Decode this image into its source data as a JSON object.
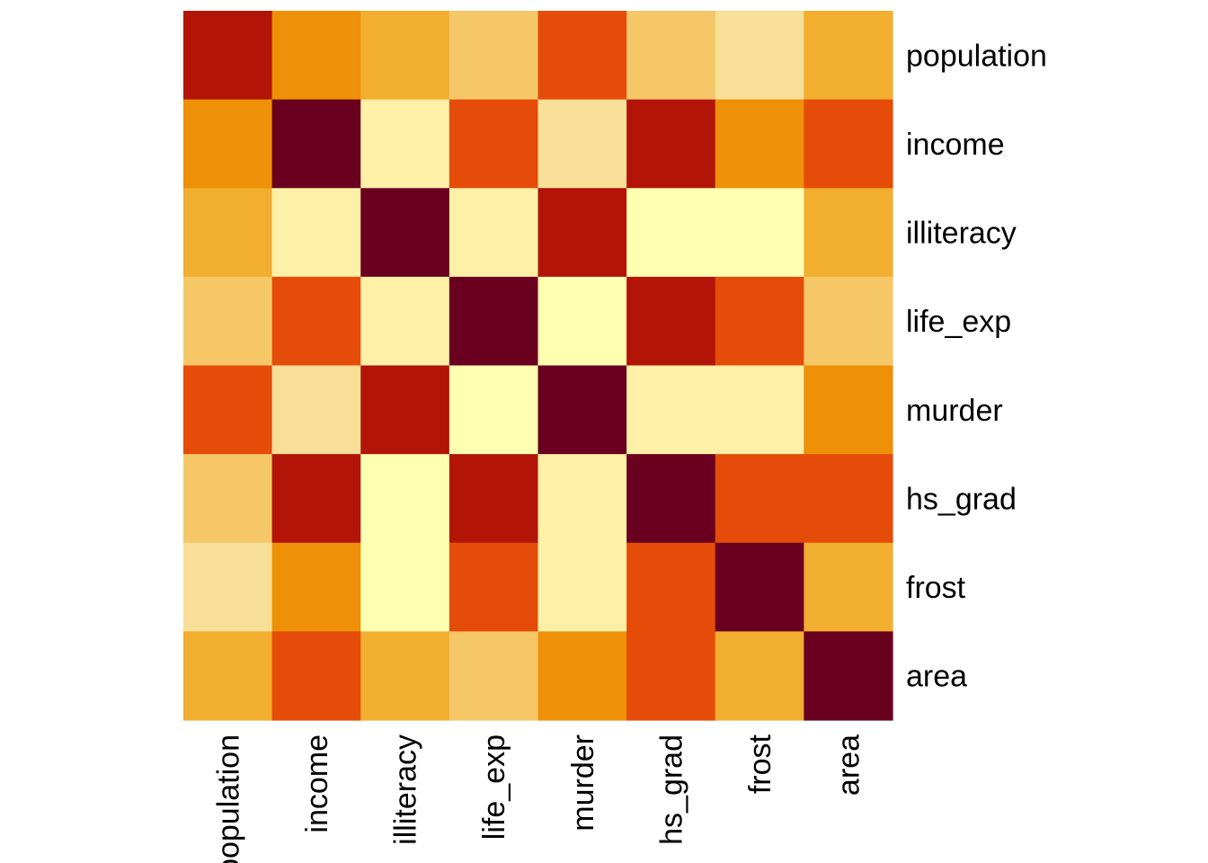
{
  "chart_data": {
    "type": "heatmap",
    "title": "",
    "xlabel": "",
    "ylabel": "",
    "row_labels": [
      "population",
      "income",
      "illiteracy",
      "life_exp",
      "murder",
      "hs_grad",
      "frost",
      "area"
    ],
    "col_labels": [
      "population",
      "income",
      "illiteracy",
      "life_exp",
      "murder",
      "hs_grad",
      "frost",
      "area"
    ],
    "values": [
      [
        6,
        4,
        3,
        2,
        5,
        2,
        1,
        3
      ],
      [
        4,
        7,
        0.5,
        5,
        1,
        6,
        4,
        5
      ],
      [
        3,
        0.5,
        7,
        0.2,
        6,
        -0.2,
        -0.2,
        3
      ],
      [
        2,
        5,
        0.2,
        7,
        -0.2,
        6,
        5,
        2
      ],
      [
        5,
        1,
        6,
        -0.2,
        7,
        0.2,
        0.2,
        4
      ],
      [
        2,
        6,
        -0.2,
        6,
        0.2,
        7,
        5,
        5
      ],
      [
        1,
        4,
        -0.2,
        5,
        0.2,
        5,
        7,
        3
      ],
      [
        3,
        5,
        3,
        2,
        4,
        5,
        3,
        7
      ]
    ],
    "color_scale": [
      "#FFFFB2",
      "#FEF0A7",
      "#F7DF98",
      "#F5C767",
      "#F2AE2F",
      "#EE9008",
      "#EB6F0B",
      "#E54C09",
      "#B21407",
      "#6A0020"
    ],
    "legend": "none",
    "grid": false
  }
}
